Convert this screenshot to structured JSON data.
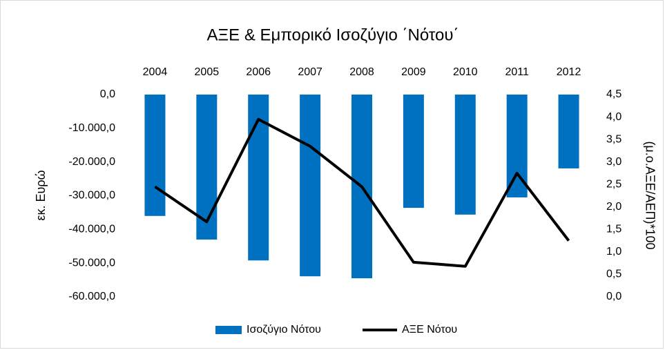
{
  "chart_data": {
    "type": "combo",
    "title": "ΑΞΕ & Εμπορικό Ισοζύγιο ΄Νότου΄",
    "ylabel": "εκ. Ευρώ",
    "y2label": "(μ.ο.ΑΞΕ/ΑΕΠ)*100",
    "categories": [
      "2004",
      "2005",
      "2006",
      "2007",
      "2008",
      "2009",
      "2010",
      "2011",
      "2012"
    ],
    "series": [
      {
        "name": "Ισοζύγιο Νότου",
        "type": "bar",
        "color": "#0070c0",
        "values": [
          -36000,
          -43000,
          -49200,
          -53900,
          -54500,
          -33600,
          -35600,
          -30500,
          -21900
        ]
      },
      {
        "name": "ΑΞΕ Νότου",
        "type": "line",
        "axis": "y2",
        "color": "#000000",
        "values": [
          2.45,
          1.67,
          3.95,
          3.35,
          2.45,
          0.77,
          0.68,
          2.75,
          1.25
        ]
      }
    ],
    "ylim": [
      -60000,
      0
    ],
    "yticks": [
      {
        "value": 0,
        "label": "0,0"
      },
      {
        "value": -10000,
        "label": "-10.000,0"
      },
      {
        "value": -20000,
        "label": "-20.000,0"
      },
      {
        "value": -30000,
        "label": "-30.000,0"
      },
      {
        "value": -40000,
        "label": "-40.000,0"
      },
      {
        "value": -50000,
        "label": "-50.000,0"
      },
      {
        "value": -60000,
        "label": "-60.000,0"
      }
    ],
    "y2lim": [
      0,
      4.5
    ],
    "y2ticks": [
      {
        "value": 0,
        "label": "0,0"
      },
      {
        "value": 0.5,
        "label": "0,5"
      },
      {
        "value": 1,
        "label": "1,0"
      },
      {
        "value": 1.5,
        "label": "1,5"
      },
      {
        "value": 2,
        "label": "2,0"
      },
      {
        "value": 2.5,
        "label": "2,5"
      },
      {
        "value": 3,
        "label": "3,0"
      },
      {
        "value": 3.5,
        "label": "3,5"
      },
      {
        "value": 4,
        "label": "4,0"
      },
      {
        "value": 4.5,
        "label": "4,5"
      }
    ],
    "grid": false,
    "legend": "bottom"
  }
}
